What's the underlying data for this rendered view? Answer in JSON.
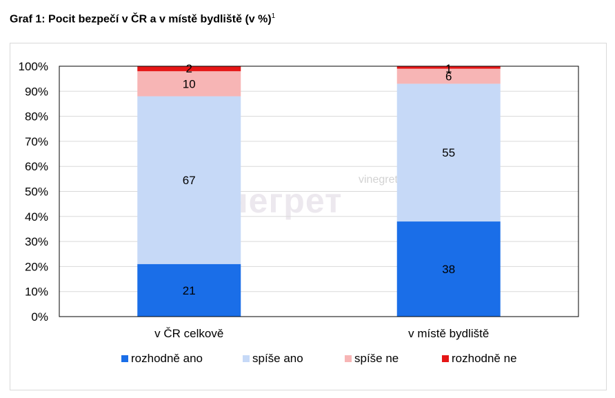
{
  "title": {
    "text": "Graf 1: Pocit bezpečí v ČR a v místě bydliště (v %)",
    "footnote": "1"
  },
  "watermark": {
    "logo_text": "винегрет",
    "site": "vinegret.cz"
  },
  "colors": {
    "rozhodne_ano": "#1a6ee8",
    "spise_ano": "#c6d9f7",
    "spise_ne": "#f7b5b5",
    "rozhodne_ne": "#e51616",
    "gridline": "#d9d9d9",
    "axis": "#000000"
  },
  "chart_data": {
    "type": "bar",
    "stacked": true,
    "percent_axis": true,
    "categories": [
      "v ČR celkově",
      "v místě bydliště"
    ],
    "series": [
      {
        "name": "rozhodně ano",
        "values": [
          21,
          38
        ]
      },
      {
        "name": "spíše ano",
        "values": [
          67,
          55
        ]
      },
      {
        "name": "spíše ne",
        "values": [
          10,
          6
        ]
      },
      {
        "name": "rozhodně ne",
        "values": [
          2,
          1
        ]
      }
    ],
    "ylim": [
      0,
      100
    ],
    "yticks": [
      "0%",
      "10%",
      "20%",
      "30%",
      "40%",
      "50%",
      "60%",
      "70%",
      "80%",
      "90%",
      "100%"
    ],
    "grid": true,
    "legend": "bottom"
  }
}
